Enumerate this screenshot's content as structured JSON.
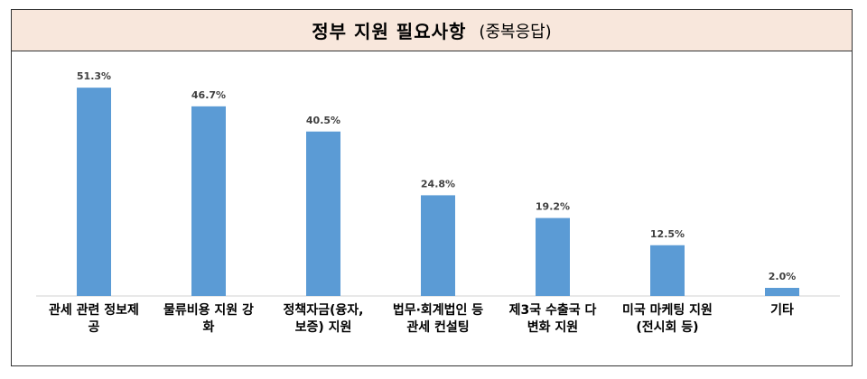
{
  "title": {
    "main": "정부 지원 필요사항",
    "sub": "(중복응답)"
  },
  "colors": {
    "bar": "#5b9bd5",
    "header_bg": "#f8e7dc"
  },
  "chart_data": {
    "type": "bar",
    "categories": [
      [
        "관세 관련 정보제",
        "공"
      ],
      [
        "물류비용 지원 강",
        "화"
      ],
      [
        "정책자금(융자,",
        "보증) 지원"
      ],
      [
        "법무·회계법인 등",
        "관세 컨설팅"
      ],
      [
        "제3국 수출국 다",
        "변화 지원"
      ],
      [
        "미국 마케팅 지원",
        "(전시회 등)"
      ],
      [
        "기타"
      ]
    ],
    "values": [
      51.3,
      46.7,
      40.5,
      24.8,
      19.2,
      12.5,
      2.0
    ],
    "value_labels": [
      "51.3%",
      "46.7%",
      "40.5%",
      "24.8%",
      "19.2%",
      "12.5%",
      "2.0%"
    ],
    "ylim": [
      0,
      60
    ],
    "grid": false,
    "legend": "none"
  }
}
